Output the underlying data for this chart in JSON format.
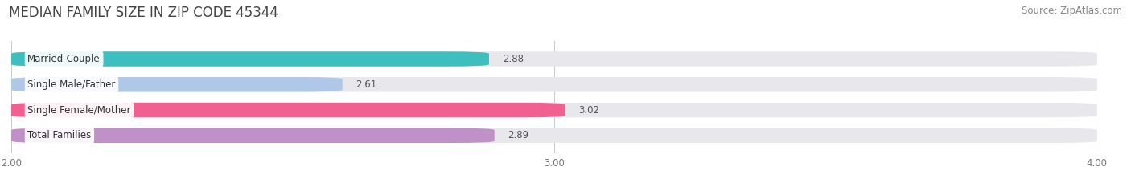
{
  "title": "MEDIAN FAMILY SIZE IN ZIP CODE 45344",
  "source": "Source: ZipAtlas.com",
  "categories": [
    "Married-Couple",
    "Single Male/Father",
    "Single Female/Mother",
    "Total Families"
  ],
  "values": [
    2.88,
    2.61,
    3.02,
    2.89
  ],
  "bar_colors": [
    "#3dbfbf",
    "#b0c8e8",
    "#f06090",
    "#c090c8"
  ],
  "xlim": [
    2.0,
    4.0
  ],
  "xticks": [
    2.0,
    3.0,
    4.0
  ],
  "xtick_labels": [
    "2.00",
    "3.00",
    "4.00"
  ],
  "background_color": "#ffffff",
  "bar_background_color": "#e8e8ec",
  "title_fontsize": 12,
  "source_fontsize": 8.5,
  "label_fontsize": 8.5,
  "value_fontsize": 8.5,
  "tick_fontsize": 8.5,
  "bar_height": 0.58
}
